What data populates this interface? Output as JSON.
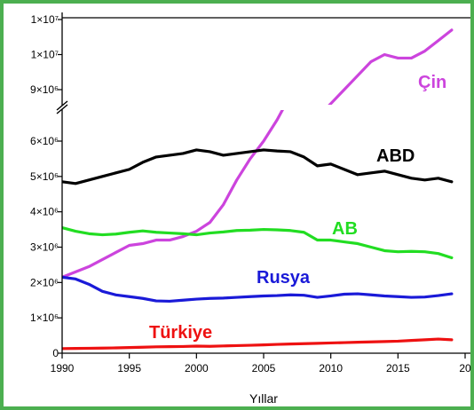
{
  "chart_data": {
    "type": "line",
    "xlabel": "Yıllar",
    "ylabel": "",
    "xlim": [
      1990,
      2020
    ],
    "x_tick_labels": [
      "1990",
      "1995",
      "2000",
      "2005",
      "2010",
      "2015",
      "20"
    ],
    "y_lower_ticks": [
      {
        "value": 0,
        "label": "0"
      },
      {
        "value": 1000000,
        "label": "1×10⁶"
      },
      {
        "value": 2000000,
        "label": "2×10⁶"
      },
      {
        "value": 3000000,
        "label": "3×10⁶"
      },
      {
        "value": 4000000,
        "label": "4×10⁶"
      },
      {
        "value": 5000000,
        "label": "5×10⁶"
      },
      {
        "value": 6000000,
        "label": "6×10⁶"
      }
    ],
    "y_upper_ticks": [
      {
        "value": 9000000,
        "label": "9×10⁶"
      },
      {
        "value": 10000000,
        "label": "1×10⁷"
      },
      {
        "value": 11000000,
        "label": "1×10⁷"
      }
    ],
    "y_axis_break": true,
    "grid": false,
    "legend": "inline labels",
    "series": [
      {
        "name": "Çin",
        "color": "#cc44dd",
        "x": [
          1990,
          1991,
          1992,
          1993,
          1994,
          1995,
          1996,
          1997,
          1998,
          1999,
          2000,
          2001,
          2002,
          2003,
          2004,
          2005,
          2006,
          2007,
          2008,
          2009,
          2010,
          2011,
          2012,
          2013,
          2014,
          2015,
          2016,
          2017,
          2018,
          2019
        ],
        "y": [
          2150000,
          2300000,
          2450000,
          2650000,
          2850000,
          3050000,
          3100000,
          3200000,
          3200000,
          3300000,
          3450000,
          3700000,
          4200000,
          4900000,
          5500000,
          6000000,
          6600000,
          7300000,
          7700000,
          8200000,
          8600000,
          9000000,
          9400000,
          9800000,
          10000000,
          9900000,
          9900000,
          10100000,
          10400000,
          10700000
        ]
      },
      {
        "name": "ABD",
        "color": "#000000",
        "x": [
          1990,
          1991,
          1992,
          1993,
          1994,
          1995,
          1996,
          1997,
          1998,
          1999,
          2000,
          2001,
          2002,
          2003,
          2004,
          2005,
          2006,
          2007,
          2008,
          2009,
          2010,
          2011,
          2012,
          2013,
          2014,
          2015,
          2016,
          2017,
          2018,
          2019
        ],
        "y": [
          4850000,
          4800000,
          4900000,
          5000000,
          5100000,
          5200000,
          5400000,
          5550000,
          5600000,
          5650000,
          5750000,
          5700000,
          5600000,
          5650000,
          5700000,
          5750000,
          5720000,
          5700000,
          5550000,
          5300000,
          5350000,
          5200000,
          5050000,
          5100000,
          5150000,
          5050000,
          4950000,
          4900000,
          4950000,
          4850000
        ]
      },
      {
        "name": "AB",
        "color": "#22dd22",
        "x": [
          1990,
          1991,
          1992,
          1993,
          1994,
          1995,
          1996,
          1997,
          1998,
          1999,
          2000,
          2001,
          2002,
          2003,
          2004,
          2005,
          2006,
          2007,
          2008,
          2009,
          2010,
          2011,
          2012,
          2013,
          2014,
          2015,
          2016,
          2017,
          2018,
          2019
        ],
        "y": [
          3550000,
          3450000,
          3380000,
          3350000,
          3370000,
          3420000,
          3460000,
          3420000,
          3400000,
          3380000,
          3350000,
          3400000,
          3430000,
          3470000,
          3480000,
          3500000,
          3490000,
          3470000,
          3420000,
          3200000,
          3200000,
          3150000,
          3100000,
          3000000,
          2900000,
          2870000,
          2880000,
          2870000,
          2820000,
          2700000
        ]
      },
      {
        "name": "Rusya",
        "color": "#1a1ad8",
        "x": [
          1990,
          1991,
          1992,
          1993,
          1994,
          1995,
          1996,
          1997,
          1998,
          1999,
          2000,
          2001,
          2002,
          2003,
          2004,
          2005,
          2006,
          2007,
          2008,
          2009,
          2010,
          2011,
          2012,
          2013,
          2014,
          2015,
          2016,
          2017,
          2018,
          2019
        ],
        "y": [
          2150000,
          2100000,
          1950000,
          1750000,
          1650000,
          1600000,
          1550000,
          1480000,
          1470000,
          1500000,
          1530000,
          1550000,
          1560000,
          1580000,
          1600000,
          1620000,
          1630000,
          1650000,
          1640000,
          1580000,
          1620000,
          1670000,
          1680000,
          1650000,
          1620000,
          1600000,
          1580000,
          1590000,
          1630000,
          1680000
        ]
      },
      {
        "name": "Türkiye",
        "color": "#ee1111",
        "x": [
          1990,
          1991,
          1992,
          1993,
          1994,
          1995,
          1996,
          1997,
          1998,
          1999,
          2000,
          2001,
          2002,
          2003,
          2004,
          2005,
          2006,
          2007,
          2008,
          2009,
          2010,
          2011,
          2012,
          2013,
          2014,
          2015,
          2016,
          2017,
          2018,
          2019
        ],
        "y": [
          130000,
          135000,
          140000,
          145000,
          150000,
          160000,
          170000,
          180000,
          185000,
          190000,
          200000,
          195000,
          205000,
          215000,
          225000,
          235000,
          250000,
          260000,
          270000,
          280000,
          290000,
          300000,
          310000,
          320000,
          330000,
          340000,
          360000,
          380000,
          400000,
          380000
        ]
      }
    ]
  }
}
